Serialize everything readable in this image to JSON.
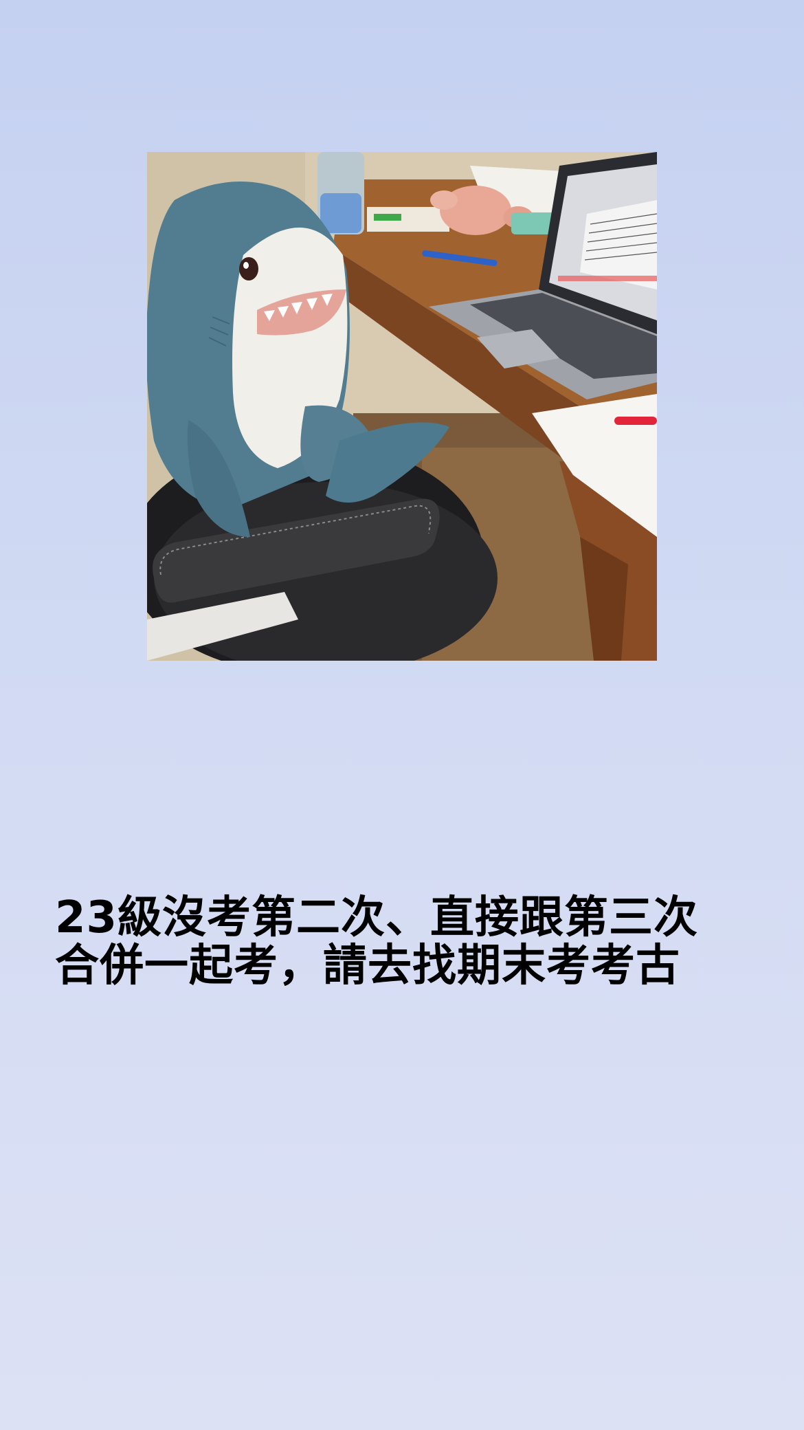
{
  "story": {
    "background_colors": [
      "#c5d1f1",
      "#dde1f4"
    ],
    "photo": {
      "subject": "plush-shark-at-desk-photo",
      "elements": [
        "plush-shark-icon",
        "office-chair-icon",
        "laptop-icon",
        "desk-icon",
        "pink-plush-toy-icon",
        "water-bottle-icon",
        "papers-icon"
      ]
    },
    "caption": {
      "line1": "23級沒考第二次、直接跟第三次",
      "line2": "合併一起考，請去找期末考考古"
    },
    "text_color": "#000000"
  }
}
